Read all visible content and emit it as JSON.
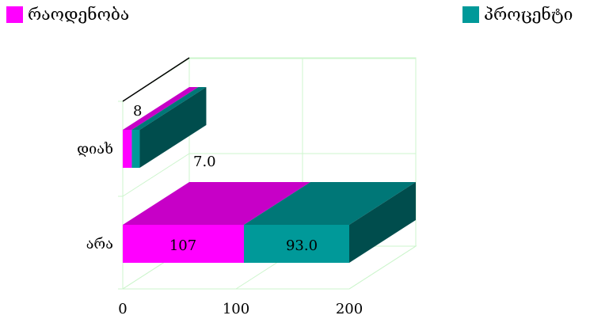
{
  "chart_data": {
    "type": "bar",
    "orientation": "horizontal",
    "stacked": true,
    "three_d": true,
    "categories": [
      "დიახ",
      "არა"
    ],
    "series": [
      {
        "name": "რაოდენობა",
        "values": [
          8,
          107
        ],
        "labels": [
          "8",
          "107"
        ],
        "color": "#ff00ff"
      },
      {
        "name": "პროცენტი",
        "values": [
          7.0,
          93.0
        ],
        "labels": [
          "7.0",
          "93.0"
        ],
        "color": "#009999"
      }
    ],
    "xlim": [
      0,
      200
    ],
    "xticks": [
      "0",
      "100",
      "200"
    ],
    "grid": true,
    "grid_color": "#ccf5cc",
    "legend_placement": "top",
    "title": "",
    "xlabel": "",
    "ylabel": ""
  }
}
